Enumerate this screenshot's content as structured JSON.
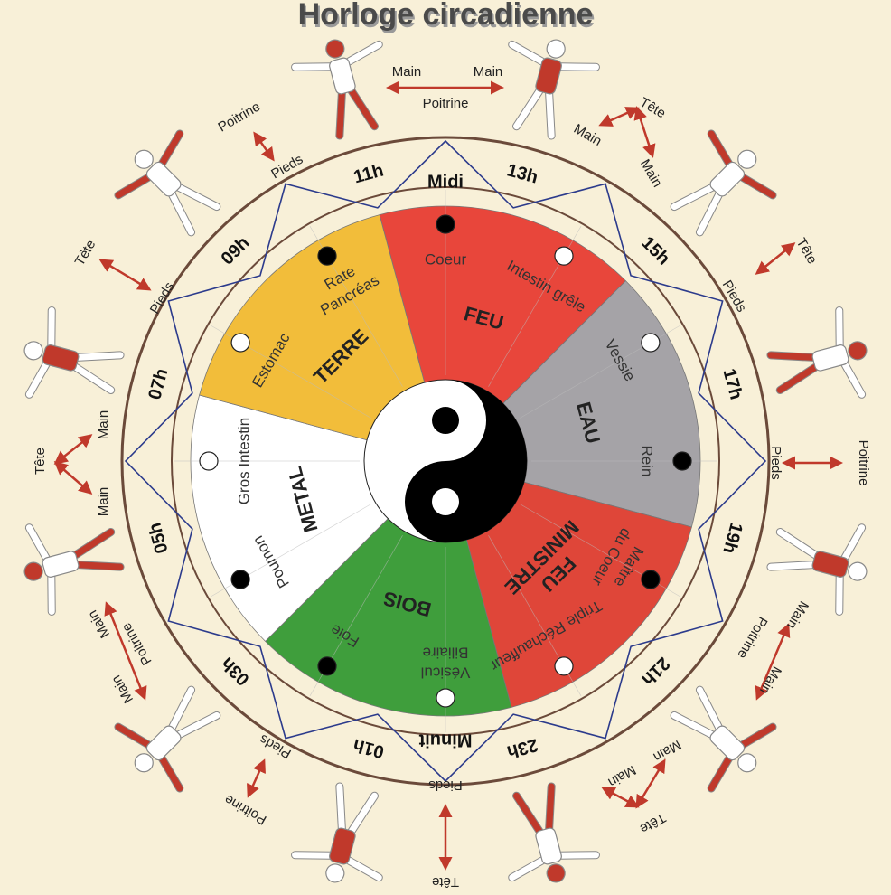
{
  "title": "Horloge circadienne",
  "hours": [
    "Midi",
    "13h",
    "15h",
    "17h",
    "19h",
    "21h",
    "23h",
    "Minuit",
    "01h",
    "03h",
    "05h",
    "07h",
    "09h",
    "11h"
  ],
  "elements": [
    {
      "name": [
        "FEU"
      ],
      "color": "#e8463b",
      "organs": [
        {
          "name": [
            "Coeur"
          ],
          "dot": "#000000"
        },
        {
          "name": [
            "Intestin grêle"
          ],
          "dot": "#ffffff"
        }
      ]
    },
    {
      "name": [
        "EAU"
      ],
      "color": "#a5a3a7",
      "organs": [
        {
          "name": [
            "Vessie"
          ],
          "dot": "#ffffff"
        },
        {
          "name": [
            "Rein"
          ],
          "dot": "#000000"
        }
      ]
    },
    {
      "name": [
        "FEU",
        "MINISTRE"
      ],
      "color": "#df4639",
      "organs": [
        {
          "name": [
            "Maître",
            "du Coeur"
          ],
          "dot": "#000000"
        },
        {
          "name": [
            "Triple Réchauffeur"
          ],
          "dot": "#ffffff"
        }
      ]
    },
    {
      "name": [
        "BOIS"
      ],
      "color": "#3f9e3c",
      "organs": [
        {
          "name": [
            "Vésicul",
            "Biliaire"
          ],
          "dot": "#ffffff"
        },
        {
          "name": [
            "Foie"
          ],
          "dot": "#000000"
        }
      ]
    },
    {
      "name": [
        "METAL"
      ],
      "color": "#ffffff",
      "organs": [
        {
          "name": [
            "Poumon"
          ],
          "dot": "#000000"
        },
        {
          "name": [
            "Gros Intestin"
          ],
          "dot": "#ffffff"
        }
      ]
    },
    {
      "name": [
        "TERRE"
      ],
      "color": "#f2bd3a",
      "organs": [
        {
          "name": [
            "Estomac"
          ],
          "dot": "#ffffff"
        },
        {
          "name": [
            "Rate",
            "Pancréas"
          ],
          "dot": "#000000"
        }
      ]
    }
  ],
  "figure_labels": [
    [
      "Main",
      "Main",
      "Poitrine"
    ],
    [
      "Tête",
      "Main",
      "Main"
    ],
    [
      "Tête",
      "Pieds"
    ],
    [
      "Poitrine",
      "Pieds"
    ],
    [
      "Main",
      "Poitrine",
      "Main"
    ],
    [
      "Main",
      "Main",
      "Tête"
    ],
    [
      "Pieds",
      "Tête"
    ],
    [
      "Pieds",
      "Poitrine"
    ],
    [
      "Main",
      "Poitrine",
      "Main"
    ],
    [
      "Tête",
      "Main",
      "Main"
    ],
    [
      "Tête",
      "Pieds"
    ],
    [
      "Poitrine",
      "Pieds"
    ]
  ]
}
